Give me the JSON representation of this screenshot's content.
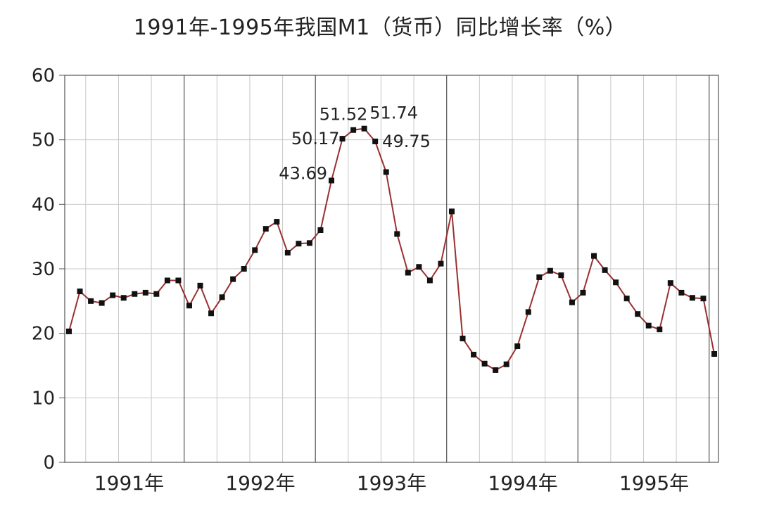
{
  "chart_data": {
    "type": "line",
    "title": "1991年-1995年我国M1（货币）同比增长率（%）",
    "xlabel": "",
    "ylabel": "",
    "ylim": [
      0,
      60
    ],
    "yticks": [
      "0",
      "10",
      "20",
      "30",
      "40",
      "50",
      "60"
    ],
    "years": [
      "1991年",
      "1992年",
      "1993年",
      "1994年",
      "1995年"
    ],
    "grid": true,
    "series": [
      {
        "color": "#9b2f2f",
        "marker_color": "#111111",
        "values": [
          20.3,
          26.5,
          25.0,
          24.7,
          25.9,
          25.5,
          26.1,
          26.3,
          26.1,
          28.2,
          28.2,
          24.3,
          27.4,
          23.1,
          25.6,
          28.4,
          30.0,
          32.9,
          36.2,
          37.3,
          32.5,
          33.9,
          34.0,
          36.0,
          43.69,
          50.17,
          51.52,
          51.74,
          49.75,
          45.0,
          35.4,
          29.4,
          30.3,
          28.2,
          30.8,
          38.9,
          19.2,
          16.7,
          15.3,
          14.3,
          15.2,
          18.0,
          23.3,
          28.7,
          29.7,
          29.0,
          24.8,
          26.3,
          32.0,
          29.8,
          27.9,
          25.4,
          23.0,
          21.2,
          20.6,
          27.8,
          26.3,
          25.5,
          25.4,
          16.8
        ]
      }
    ],
    "annotations": [
      {
        "index": 24,
        "text": "43.69"
      },
      {
        "index": 25,
        "text": "50.17"
      },
      {
        "index": 26,
        "text": "51.52"
      },
      {
        "index": 27,
        "text": "51.74"
      },
      {
        "index": 28,
        "text": "49.75"
      }
    ]
  }
}
